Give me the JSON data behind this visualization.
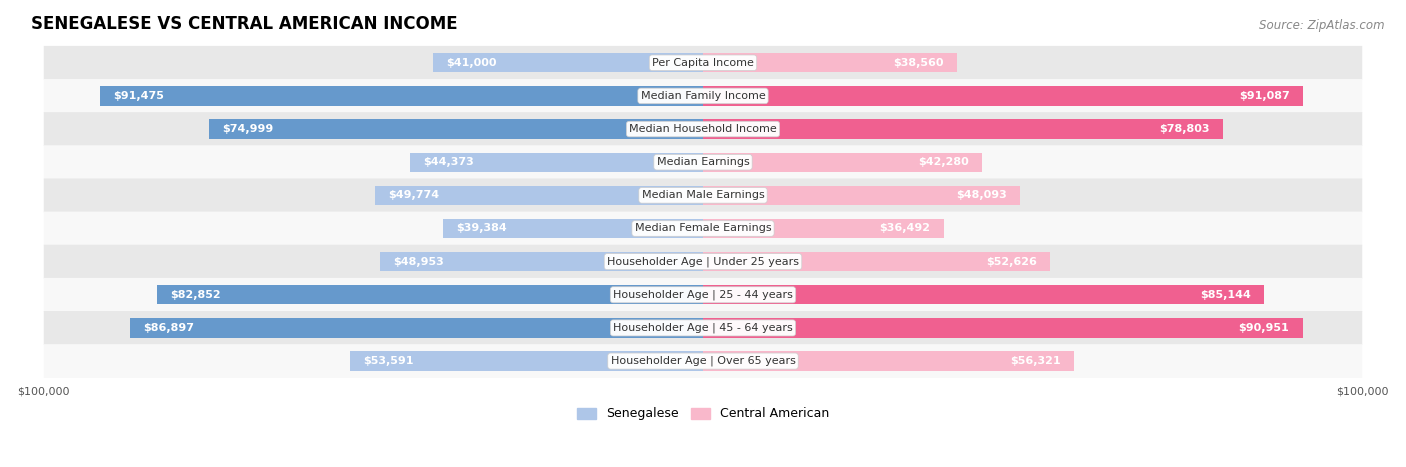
{
  "title": "SENEGALESE VS CENTRAL AMERICAN INCOME",
  "source": "Source: ZipAtlas.com",
  "categories": [
    "Per Capita Income",
    "Median Family Income",
    "Median Household Income",
    "Median Earnings",
    "Median Male Earnings",
    "Median Female Earnings",
    "Householder Age | Under 25 years",
    "Householder Age | 25 - 44 years",
    "Householder Age | 45 - 64 years",
    "Householder Age | Over 65 years"
  ],
  "senegalese": [
    41000,
    91475,
    74999,
    44373,
    49774,
    39384,
    48953,
    82852,
    86897,
    53591
  ],
  "central_american": [
    38560,
    91087,
    78803,
    42280,
    48093,
    36492,
    52626,
    85144,
    90951,
    56321
  ],
  "senegalese_labels": [
    "$41,000",
    "$91,475",
    "$74,999",
    "$44,373",
    "$49,774",
    "$39,384",
    "$48,953",
    "$82,852",
    "$86,897",
    "$53,591"
  ],
  "central_american_labels": [
    "$38,560",
    "$91,087",
    "$78,803",
    "$42,280",
    "$48,093",
    "$36,492",
    "$52,626",
    "$85,144",
    "$90,951",
    "$56,321"
  ],
  "max_val": 100000,
  "blue_light": "#aec6e8",
  "blue_dark": "#6699cc",
  "pink_light": "#f9b8cb",
  "pink_dark": "#f06090",
  "row_bg_odd": "#e8e8e8",
  "row_bg_even": "#f8f8f8",
  "title_fontsize": 12,
  "source_fontsize": 8.5,
  "bar_label_fontsize": 8,
  "cat_label_fontsize": 8,
  "axis_label_fontsize": 8,
  "legend_fontsize": 9,
  "inside_threshold": 20000
}
